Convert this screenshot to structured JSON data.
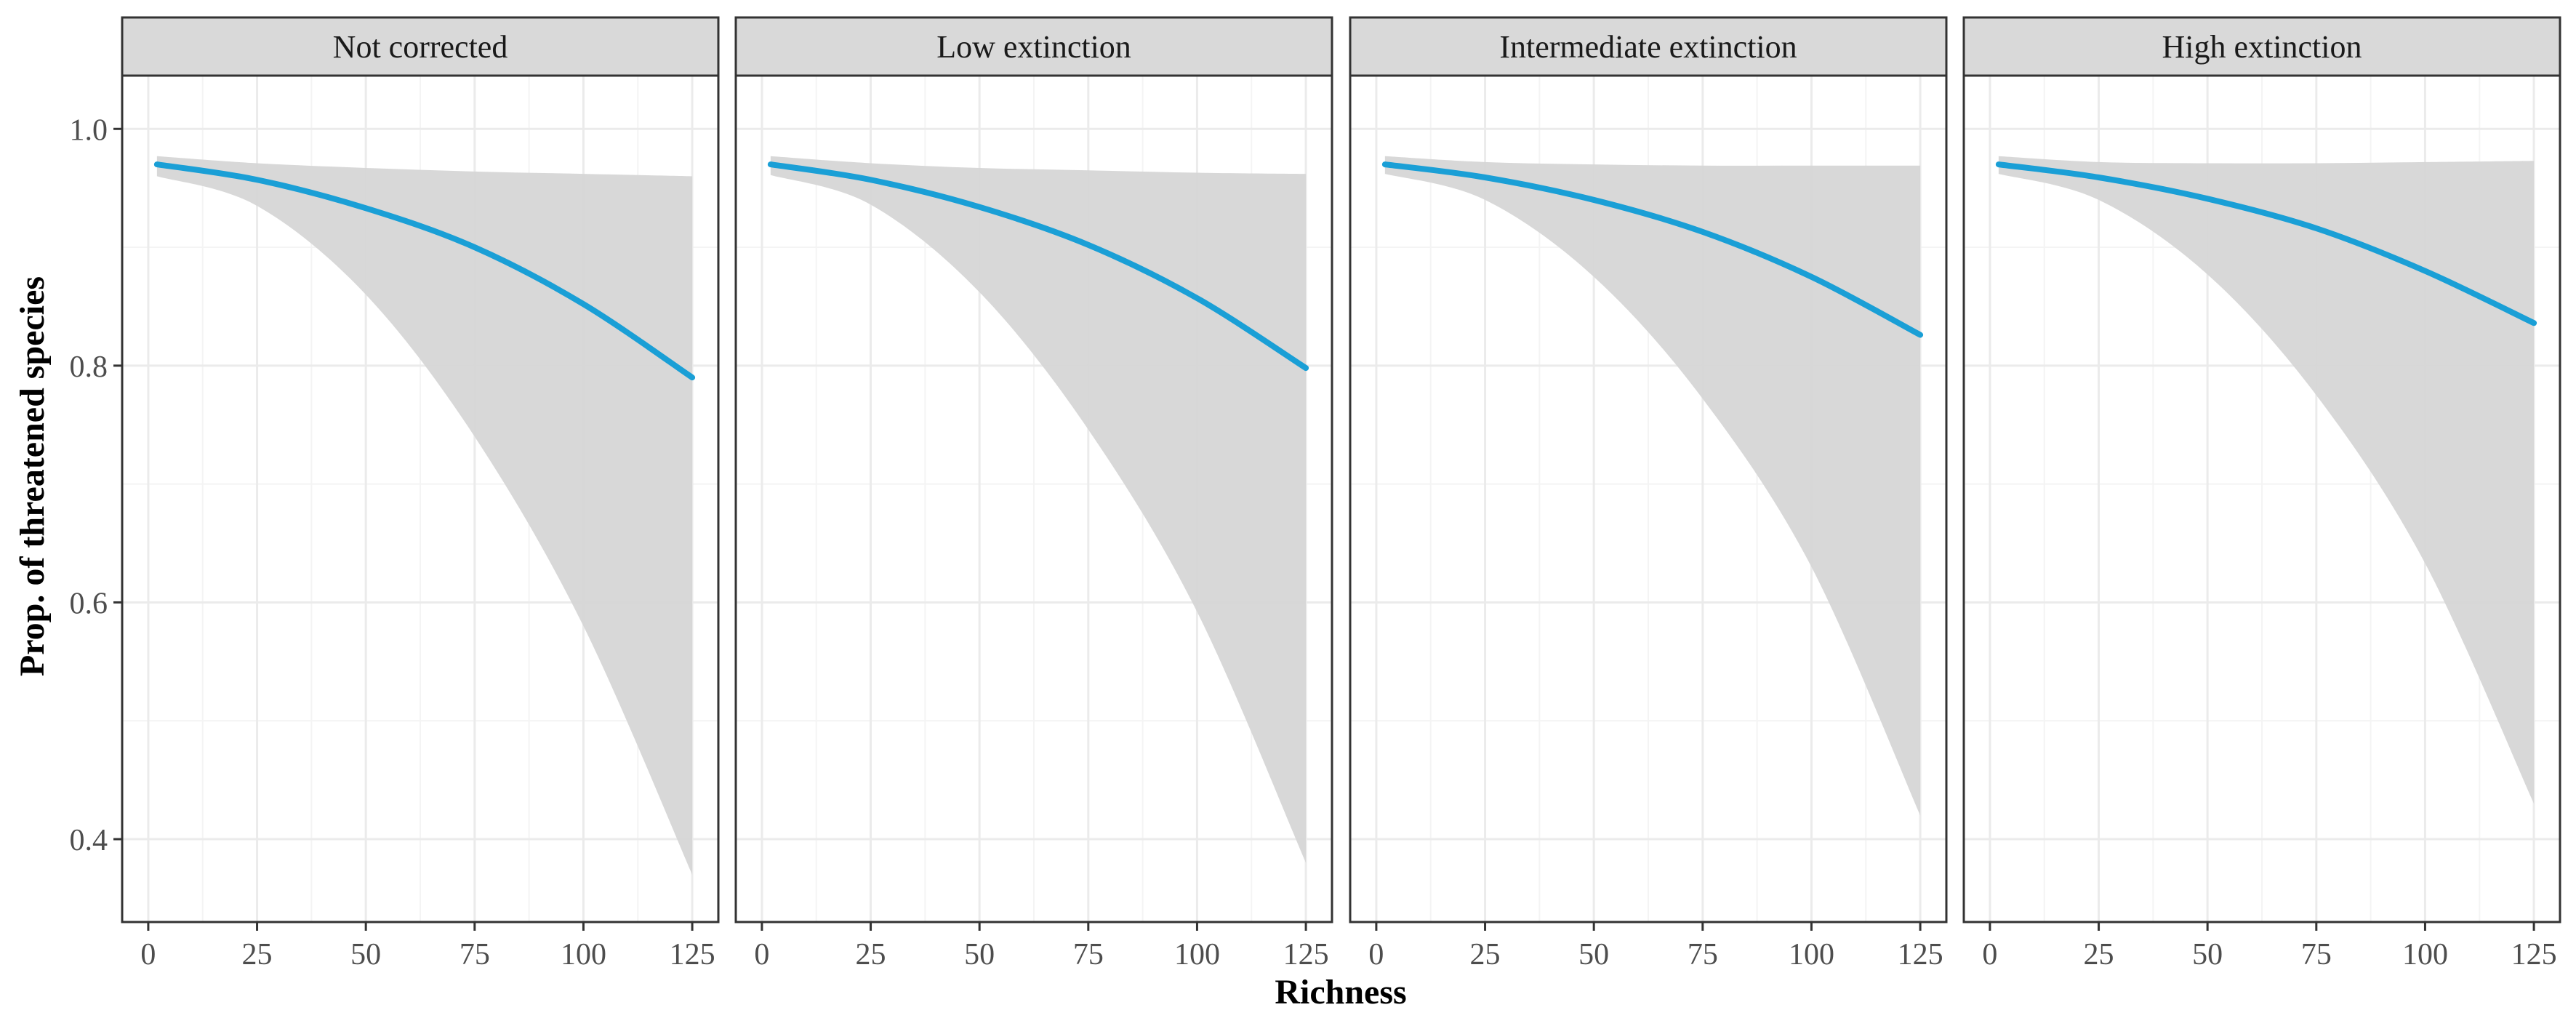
{
  "chart_data": {
    "type": "line",
    "xlabel": "Richness",
    "ylabel": "Prop. of threatened species",
    "xlim": [
      -6,
      131
    ],
    "ylim": [
      0.33,
      1.045
    ],
    "x_ticks": [
      0,
      25,
      50,
      75,
      100,
      125
    ],
    "x_tick_labels": [
      "0",
      "25",
      "50",
      "75",
      "100",
      "125"
    ],
    "y_ticks": [
      0.4,
      0.6,
      0.8,
      1.0
    ],
    "y_tick_labels": [
      "0.4",
      "0.6",
      "0.8",
      "1.0"
    ],
    "grid": true,
    "colors": {
      "line": "#1a9fd6",
      "ribbon": "#d6d6d6",
      "strip": "#d9d9d9",
      "grid": "#ebebeb"
    },
    "panels": [
      {
        "label": "Not corrected",
        "x": [
          2,
          25,
          50,
          75,
          100,
          125
        ],
        "y": [
          0.97,
          0.957,
          0.933,
          0.9,
          0.852,
          0.79
        ],
        "lower": [
          0.96,
          0.935,
          0.86,
          0.74,
          0.58,
          0.37
        ],
        "upper": [
          0.977,
          0.971,
          0.967,
          0.964,
          0.962,
          0.96
        ]
      },
      {
        "label": "Low extinction",
        "x": [
          2,
          25,
          50,
          75,
          100,
          125
        ],
        "y": [
          0.97,
          0.957,
          0.934,
          0.902,
          0.857,
          0.798
        ],
        "lower": [
          0.961,
          0.936,
          0.862,
          0.746,
          0.592,
          0.38
        ],
        "upper": [
          0.977,
          0.971,
          0.967,
          0.965,
          0.963,
          0.962
        ]
      },
      {
        "label": "Intermediate extinction",
        "x": [
          2,
          25,
          50,
          75,
          100,
          125
        ],
        "y": [
          0.97,
          0.959,
          0.94,
          0.913,
          0.875,
          0.826
        ],
        "lower": [
          0.962,
          0.94,
          0.875,
          0.772,
          0.63,
          0.42
        ],
        "upper": [
          0.977,
          0.972,
          0.97,
          0.969,
          0.969,
          0.969
        ]
      },
      {
        "label": "High extinction",
        "x": [
          2,
          25,
          50,
          75,
          100,
          125
        ],
        "y": [
          0.97,
          0.959,
          0.941,
          0.916,
          0.88,
          0.836
        ],
        "lower": [
          0.962,
          0.94,
          0.877,
          0.775,
          0.633,
          0.43
        ],
        "upper": [
          0.977,
          0.972,
          0.971,
          0.971,
          0.972,
          0.973
        ]
      }
    ]
  }
}
